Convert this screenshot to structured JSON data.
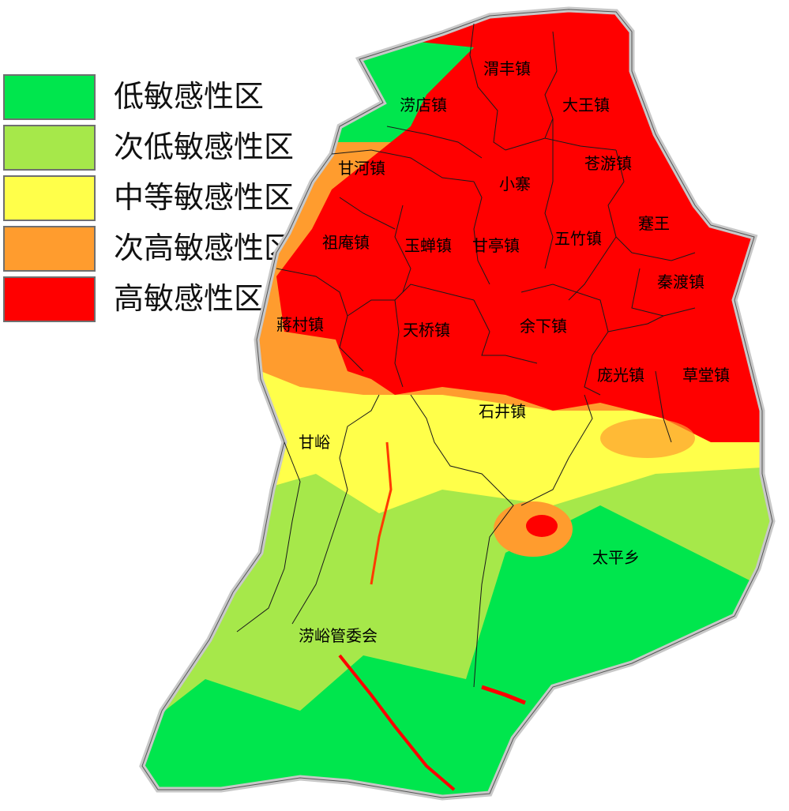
{
  "legend": {
    "items": [
      {
        "label": "低敏感性区",
        "color": "#00e64d"
      },
      {
        "label": "次低敏感性区",
        "color": "#a6e84a"
      },
      {
        "label": "中等敏感性区",
        "color": "#ffff4a"
      },
      {
        "label": "次高敏感性区",
        "color": "#ff9c2e"
      },
      {
        "label": "高敏感性区",
        "color": "#ff0000"
      }
    ]
  },
  "map": {
    "towns": {
      "weifeng": "渭丰镇",
      "laodian": "涝店镇",
      "dawang": "大王镇",
      "ganhe": "甘河镇",
      "cangyou": "苍游镇",
      "xiaozhai": "小寨",
      "jianwang": "蹇王",
      "zuan": "祖庵镇",
      "yuchan": "玉蝉镇",
      "ganting": "甘亭镇",
      "wuzhu": "五竹镇",
      "qindu": "秦渡镇",
      "jiangcun": "蔣村镇",
      "tianqiao": "天桥镇",
      "yuxia": "余下镇",
      "pangguang": "庞光镇",
      "caotang": "草堂镇",
      "shijing": "石井镇",
      "ganyu": "甘峪",
      "taiping": "太平乡",
      "laoyu": "涝峪管委会"
    }
  }
}
